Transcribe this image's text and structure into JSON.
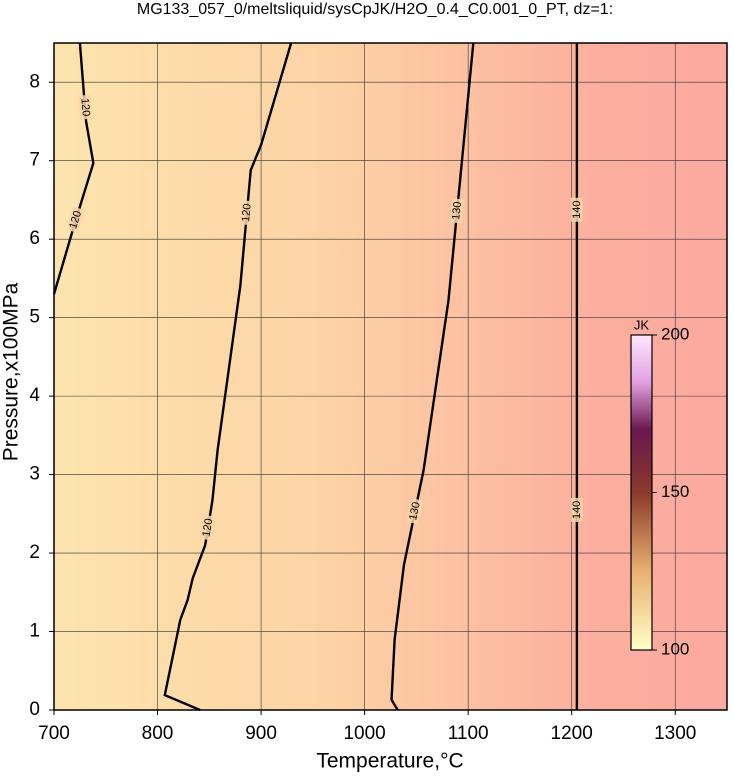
{
  "chart_data": {
    "type": "contour",
    "title": "MG133_057_0/meltsliquid/sysCpJK/H2O_0.4_C0.001_0_PT, dz=1:",
    "x_label": "Temperature,°C",
    "y_label": "Pressure,x100MPa",
    "xlim": [
      700,
      1350
    ],
    "ylim": [
      0,
      8.5
    ],
    "xticks": [
      700,
      800,
      900,
      1000,
      1100,
      1200,
      1300
    ],
    "yticks": [
      0,
      1,
      2,
      3,
      4,
      5,
      6,
      7,
      8
    ],
    "grid": true,
    "contours": [
      {
        "level": 120,
        "x": [
          700,
          720,
          738,
          731,
          725
        ],
        "y": [
          5.3,
          6.2,
          6.97,
          7.5,
          8.5
        ]
      },
      {
        "level": 120,
        "x": [
          841,
          807,
          822,
          829,
          834,
          846,
          853,
          858,
          880,
          890,
          900,
          929
        ],
        "y": [
          0,
          0.19,
          1.15,
          1.4,
          1.68,
          2.1,
          2.67,
          3.31,
          5.41,
          6.88,
          7.2,
          8.5
        ]
      },
      {
        "level": 130,
        "x": [
          1032,
          1026,
          1029,
          1038,
          1057,
          1081,
          1105
        ],
        "y": [
          0,
          0.13,
          0.9,
          1.85,
          3.06,
          5.22,
          8.5
        ]
      },
      {
        "level": 140,
        "x": [
          1205,
          1205
        ],
        "y": [
          0,
          8.5
        ]
      }
    ],
    "colorbar": {
      "label": "JK",
      "lim": [
        100,
        200
      ],
      "ticks": [
        100,
        150,
        200
      ]
    }
  }
}
